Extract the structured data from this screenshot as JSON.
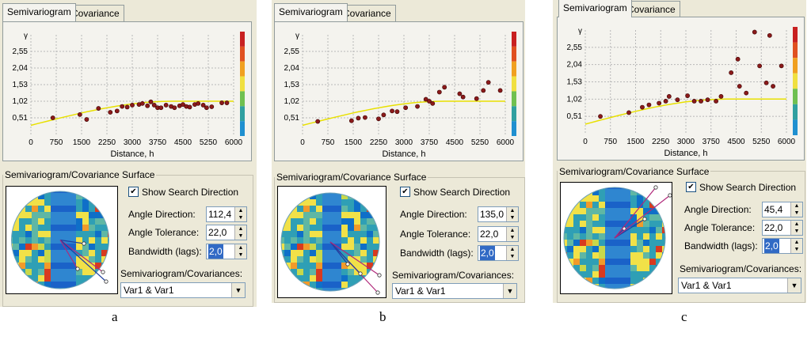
{
  "tabs": {
    "semivariogram": "Semivariogram",
    "covariance": "Covariance"
  },
  "group_title": "Semivariogram/Covariance Surface",
  "show_search_direction": "Show Search Direction",
  "labels": {
    "angle_direction": "Angle Direction:",
    "angle_tolerance": "Angle Tolerance:",
    "bandwidth": "Bandwidth (lags):",
    "semivar_cov": "Semivariogram/Covariances:"
  },
  "axis": {
    "ylabel": "γ",
    "xlabel": "Distance, h",
    "yticks": [
      "2,55",
      "2,04",
      "1,53",
      "1,02",
      "0,51"
    ],
    "xticks": [
      "0",
      "750",
      "1500",
      "2250",
      "3000",
      "3750",
      "4500",
      "5250",
      "6000"
    ]
  },
  "colors": {
    "bar": [
      "#c82020",
      "#e05020",
      "#f0a020",
      "#f0e040",
      "#70c050",
      "#30a0a0",
      "#2090d0"
    ],
    "point": "#8b1a1a",
    "curve": "#e8e000"
  },
  "panels": [
    {
      "caption": "a",
      "angle_direction": "112,4",
      "angle_tolerance": "22,0",
      "bandwidth": "2,0",
      "variable": "Var1 & Var1"
    },
    {
      "caption": "b",
      "angle_direction": "135,0",
      "angle_tolerance": "22,0",
      "bandwidth": "2,0",
      "variable": "Var1 & Var1"
    },
    {
      "caption": "c",
      "angle_direction": "45,4",
      "angle_tolerance": "22,0",
      "bandwidth": "2,0",
      "variable": "Var1 & Var1"
    }
  ],
  "chart_data": [
    {
      "type": "scatter",
      "title": "",
      "xlabel": "Distance, h",
      "ylabel": "γ",
      "xlim": [
        0,
        6000
      ],
      "ylim": [
        0,
        3.06
      ],
      "x": [
        650,
        1450,
        1650,
        2000,
        2350,
        2550,
        2700,
        2850,
        3000,
        3200,
        3300,
        3450,
        3550,
        3650,
        3750,
        3850,
        4000,
        4150,
        4250,
        4400,
        4500,
        4600,
        4700,
        4850,
        4950,
        5100,
        5200,
        5350,
        5650,
        5800
      ],
      "values": [
        0.51,
        0.61,
        0.46,
        0.8,
        0.68,
        0.72,
        0.86,
        0.84,
        0.9,
        0.92,
        0.95,
        0.88,
        1.0,
        0.9,
        0.82,
        0.82,
        0.9,
        0.86,
        0.82,
        0.88,
        0.92,
        0.86,
        0.84,
        0.92,
        0.95,
        0.9,
        0.82,
        0.85,
        0.97,
        0.97
      ],
      "model": "spherical-like fit curve rising to ~1.02"
    },
    {
      "type": "scatter",
      "title": "",
      "xlabel": "Distance, h",
      "ylabel": "γ",
      "xlim": [
        0,
        6000
      ],
      "ylim": [
        0,
        3.06
      ],
      "x": [
        450,
        1450,
        1650,
        1850,
        2250,
        2400,
        2650,
        2800,
        3050,
        3400,
        3650,
        3750,
        3850,
        4050,
        4200,
        4650,
        4750,
        5150,
        5350,
        5500,
        5850
      ],
      "values": [
        0.4,
        0.42,
        0.5,
        0.52,
        0.48,
        0.6,
        0.72,
        0.7,
        0.82,
        0.86,
        1.08,
        1.02,
        0.95,
        1.3,
        1.45,
        1.25,
        1.15,
        1.1,
        1.35,
        1.6,
        1.35
      ],
      "model": "linear-like fit curve rising to ~1.02"
    },
    {
      "type": "scatter",
      "title": "",
      "xlabel": "Distance, h",
      "ylabel": "γ",
      "xlim": [
        0,
        6000
      ],
      "ylim": [
        0,
        3.06
      ],
      "x": [
        450,
        1300,
        1700,
        1900,
        2200,
        2400,
        2500,
        2750,
        3050,
        3250,
        3450,
        3650,
        3900,
        4050,
        4350,
        4550,
        4600,
        4800,
        5050,
        5200,
        5400,
        5500,
        5600,
        5850
      ],
      "values": [
        0.51,
        0.62,
        0.78,
        0.85,
        0.9,
        0.96,
        1.1,
        1.0,
        1.12,
        0.96,
        0.96,
        1.0,
        0.96,
        1.1,
        1.8,
        2.2,
        1.4,
        1.2,
        3.0,
        2.0,
        1.5,
        2.9,
        1.4,
        2.0
      ],
      "model": "spherical-like fit curve rising to ~1.02"
    }
  ]
}
